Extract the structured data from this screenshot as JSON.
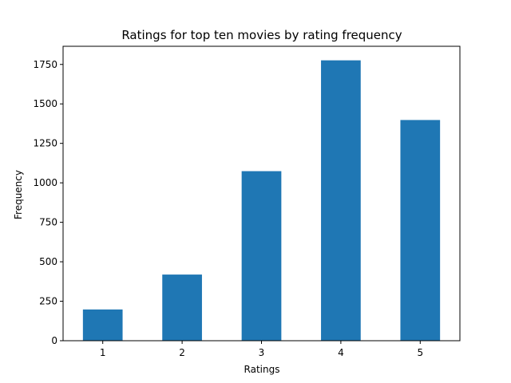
{
  "chart_data": {
    "type": "bar",
    "title": "Ratings for top ten movies by rating frequency",
    "xlabel": "Ratings",
    "ylabel": "Frequency",
    "categories": [
      "1",
      "2",
      "3",
      "4",
      "5"
    ],
    "values": [
      198,
      419,
      1074,
      1776,
      1398
    ],
    "ylim": [
      0,
      1865
    ],
    "yticks": [
      0,
      250,
      500,
      750,
      1000,
      1250,
      1500,
      1750
    ],
    "grid": false,
    "legend": "none",
    "bar_color": "#1f77b4"
  }
}
